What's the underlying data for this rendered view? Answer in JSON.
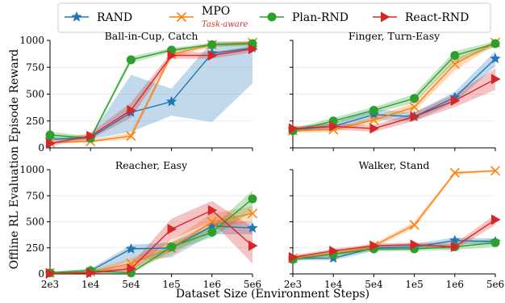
{
  "legend": [
    {
      "name": "RAND",
      "sub": "",
      "color": "#1f77b4",
      "marker": "star"
    },
    {
      "name": "MPO",
      "sub": "Task-aware",
      "color": "#ff7f0e",
      "marker": "x"
    },
    {
      "name": "Plan-RND",
      "sub": "",
      "color": "#2ca02c",
      "marker": "circle"
    },
    {
      "name": "React-RND",
      "sub": "",
      "color": "#d62728",
      "marker": "triangle"
    }
  ],
  "xlabel": "Dataset Size (Environment Steps)",
  "ylabel": "Offline RL Evaluation Episode Reward",
  "chart_data": [
    {
      "type": "line",
      "title": "Ball-in-Cup, Catch",
      "categories": [
        "2e3",
        "1e4",
        "5e4",
        "1e5",
        "1e6",
        "5e6"
      ],
      "ylim": [
        0,
        1000
      ],
      "yticks": [
        "0",
        "250",
        "500",
        "750",
        "1000"
      ],
      "series": [
        {
          "name": "RAND",
          "values": [
            80,
            95,
            330,
            430,
            880,
            930
          ],
          "band_lo": [
            60,
            80,
            150,
            300,
            240,
            600
          ],
          "band_hi": [
            100,
            110,
            680,
            550,
            990,
            990
          ]
        },
        {
          "name": "MPO",
          "values": [
            50,
            60,
            110,
            870,
            960,
            980
          ],
          "band_lo": [
            40,
            50,
            80,
            840,
            940,
            960
          ],
          "band_hi": [
            60,
            75,
            140,
            900,
            980,
            990
          ]
        },
        {
          "name": "Plan-RND",
          "values": [
            120,
            90,
            820,
            910,
            960,
            970
          ],
          "band_lo": [
            80,
            70,
            790,
            890,
            940,
            950
          ],
          "band_hi": [
            150,
            110,
            850,
            930,
            980,
            990
          ]
        },
        {
          "name": "React-RND",
          "values": [
            40,
            110,
            350,
            860,
            860,
            920
          ],
          "band_lo": [
            20,
            80,
            280,
            830,
            830,
            890
          ],
          "band_hi": [
            60,
            140,
            420,
            890,
            890,
            950
          ]
        }
      ]
    },
    {
      "type": "line",
      "title": "Finger, Turn-Easy",
      "categories": [
        "2e3",
        "1e4",
        "5e4",
        "1e5",
        "1e6",
        "5e6"
      ],
      "ylim": [
        0,
        1000
      ],
      "yticks": [],
      "series": [
        {
          "name": "RAND",
          "values": [
            170,
            200,
            310,
            290,
            470,
            830
          ],
          "band_lo": [
            150,
            170,
            260,
            250,
            420,
            760
          ],
          "band_hi": [
            190,
            230,
            360,
            330,
            520,
            900
          ]
        },
        {
          "name": "MPO",
          "values": [
            160,
            170,
            260,
            380,
            780,
            980
          ],
          "band_lo": [
            140,
            150,
            230,
            340,
            720,
            960
          ],
          "band_hi": [
            180,
            190,
            290,
            420,
            830,
            995
          ]
        },
        {
          "name": "Plan-RND",
          "values": [
            160,
            250,
            350,
            460,
            860,
            970
          ],
          "band_lo": [
            140,
            220,
            320,
            420,
            800,
            940
          ],
          "band_hi": [
            180,
            280,
            380,
            500,
            900,
            990
          ]
        },
        {
          "name": "React-RND",
          "values": [
            180,
            200,
            180,
            290,
            440,
            640
          ],
          "band_lo": [
            160,
            170,
            150,
            250,
            380,
            540
          ],
          "band_hi": [
            200,
            230,
            210,
            330,
            500,
            740
          ]
        }
      ]
    },
    {
      "type": "line",
      "title": "Reacher, Easy",
      "categories": [
        "2e3",
        "1e4",
        "5e4",
        "1e5",
        "1e6",
        "5e6"
      ],
      "ylim": [
        0,
        1000
      ],
      "yticks": [
        "0",
        "250",
        "500",
        "750",
        "1000"
      ],
      "series": [
        {
          "name": "RAND",
          "values": [
            10,
            30,
            240,
            250,
            460,
            440
          ],
          "band_lo": [
            0,
            10,
            120,
            160,
            380,
            380
          ],
          "band_hi": [
            20,
            50,
            280,
            300,
            500,
            500
          ]
        },
        {
          "name": "MPO",
          "values": [
            10,
            20,
            100,
            250,
            500,
            580
          ],
          "band_lo": [
            0,
            5,
            50,
            180,
            430,
            500
          ],
          "band_hi": [
            20,
            35,
            150,
            320,
            580,
            650
          ]
        },
        {
          "name": "Plan-RND",
          "values": [
            10,
            30,
            10,
            260,
            400,
            720
          ],
          "band_lo": [
            0,
            10,
            0,
            220,
            350,
            600
          ],
          "band_hi": [
            20,
            50,
            40,
            300,
            450,
            800
          ]
        },
        {
          "name": "React-RND",
          "values": [
            5,
            10,
            50,
            430,
            610,
            270
          ],
          "band_lo": [
            0,
            0,
            20,
            330,
            500,
            100
          ],
          "band_hi": [
            10,
            20,
            90,
            530,
            700,
            450
          ]
        }
      ]
    },
    {
      "type": "line",
      "title": "Walker, Stand",
      "categories": [
        "2e3",
        "1e4",
        "5e4",
        "1e5",
        "1e6",
        "5e6"
      ],
      "ylim": [
        0,
        1000
      ],
      "yticks": [],
      "series": [
        {
          "name": "RAND",
          "values": [
            150,
            150,
            250,
            260,
            320,
            310
          ],
          "band_lo": [
            130,
            130,
            220,
            230,
            290,
            280
          ],
          "band_hi": [
            170,
            170,
            280,
            290,
            350,
            340
          ]
        },
        {
          "name": "MPO",
          "values": [
            150,
            190,
            270,
            470,
            970,
            990
          ],
          "band_lo": [
            140,
            170,
            250,
            440,
            950,
            980
          ],
          "band_hi": [
            160,
            210,
            290,
            500,
            985,
            995
          ]
        },
        {
          "name": "Plan-RND",
          "values": [
            140,
            190,
            240,
            240,
            260,
            300
          ],
          "band_lo": [
            120,
            170,
            220,
            220,
            230,
            260
          ],
          "band_hi": [
            160,
            210,
            260,
            260,
            290,
            340
          ]
        },
        {
          "name": "React-RND",
          "values": [
            160,
            220,
            270,
            280,
            260,
            520
          ],
          "band_lo": [
            140,
            200,
            250,
            260,
            230,
            470
          ],
          "band_hi": [
            180,
            240,
            290,
            300,
            290,
            570
          ]
        }
      ]
    }
  ]
}
